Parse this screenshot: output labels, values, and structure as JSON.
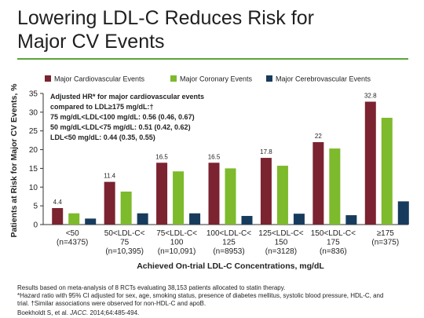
{
  "slide": {
    "title_line1": "Lowering LDL-C Reduces Risk for",
    "title_line2": "Major CV Events"
  },
  "chart_data": {
    "type": "bar",
    "ylabel": "Patients at Risk for Major CV Events, %",
    "xlabel": "Achieved On-trial LDL-C Concentrations, mg/dL",
    "ylim": [
      0,
      35
    ],
    "yticks": [
      0,
      5,
      10,
      15,
      20,
      25,
      30,
      35
    ],
    "grid": false,
    "legend_position": "top",
    "categories": [
      [
        "<50",
        "(n=4375)"
      ],
      [
        "50<LDL-C<",
        "75",
        "(n=10,395)"
      ],
      [
        "75<LDL-C<",
        "100",
        "(n=10,091)"
      ],
      [
        "100<LDL-C<",
        "125",
        "(n=8953)"
      ],
      [
        "125<LDL-C<",
        "150",
        "(n=3128)"
      ],
      [
        "150<LDL-C<",
        "175",
        "(n=836)"
      ],
      [
        "≥175",
        "(n=375)"
      ]
    ],
    "series": [
      {
        "name": "Major Cardiovascular Events",
        "color": "#7b2330",
        "values": [
          4.4,
          11.4,
          16.5,
          16.5,
          17.8,
          22,
          32.8
        ]
      },
      {
        "name": "Major Coronary Events",
        "color": "#7dba2c",
        "values": [
          3.0,
          8.8,
          14.2,
          15.0,
          15.7,
          20.3,
          28.5
        ]
      },
      {
        "name": "Major Cerebrovascular Events",
        "color": "#173b5c",
        "values": [
          1.6,
          3.0,
          3.0,
          2.3,
          2.9,
          2.5,
          6.2
        ]
      }
    ],
    "data_labels": [
      "4.4",
      "11.4",
      "16.5",
      "16.5",
      "17.8",
      "22",
      "32.8"
    ],
    "annotation": [
      "Adjusted HR* for major cardiovascular events",
      "compared to LDL≥175 mg/dL:†",
      "75 mg/dL<LDL<100 mg/dL: 0.56 (0.46, 0.67)",
      "50 mg/dL<LDL<75 mg/dL: 0.51 (0.42, 0.62)",
      "LDL<50 mg/dL: 0.44 (0.35, 0.55)"
    ]
  },
  "footnotes": {
    "line1": "Results based on meta-analysis of 8 RCTs evaluating 38,153 patients allocated to statin therapy.",
    "line2": "*Hazard ratio with 95% CI adjusted for sex, age, smoking status, presence of diabetes mellitus, systolic blood pressure, HDL-C, and",
    "line3": "trial. †Similar associations were observed for non-HDL-C and apoB.",
    "line4_authors": "Boekholdt S, et al.",
    "line4_journal": "JACC.",
    "line4_rest": "2014;64:485-494."
  }
}
